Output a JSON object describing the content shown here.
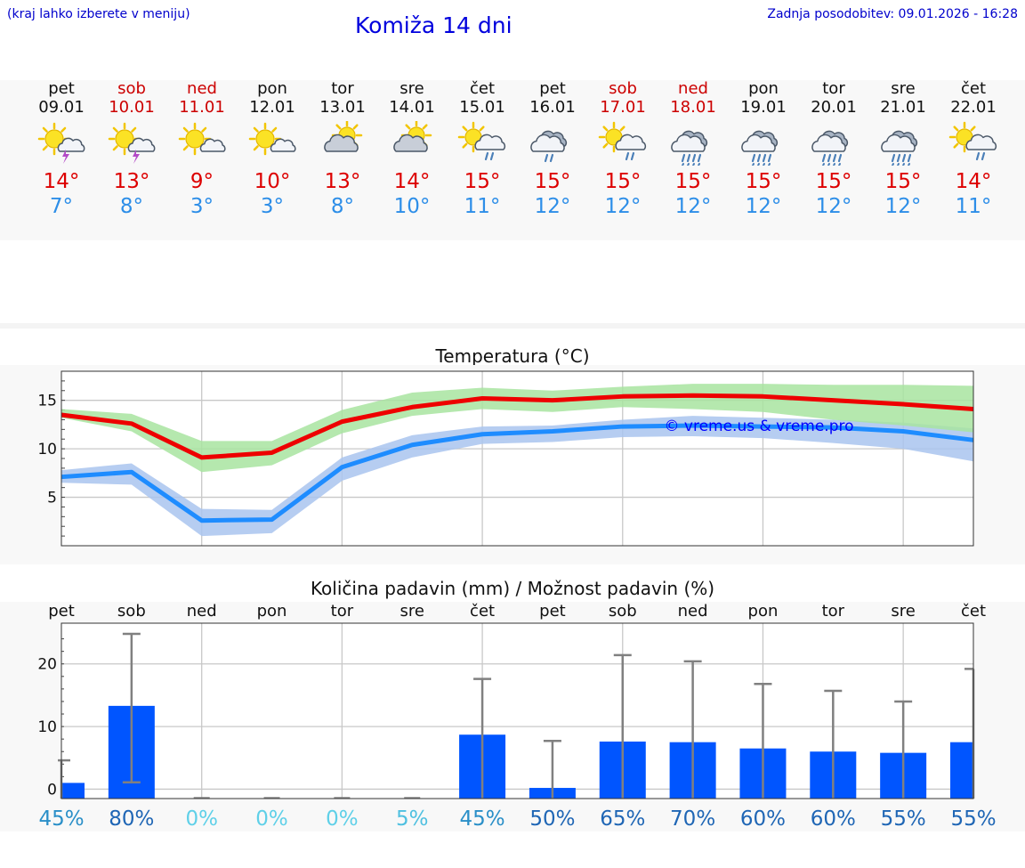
{
  "header": {
    "hint": "(kraj lahko izberete v meniju)",
    "title": "Komiža 14 dni",
    "updated": "Zadnja posodobitev: 09.01.2026 - 16:28"
  },
  "days": [
    {
      "name": "pet",
      "date": "09.01",
      "weekend": false,
      "icon": "sun-cloud-thunder-icon",
      "tmax": "14°",
      "tmin": "7°"
    },
    {
      "name": "sob",
      "date": "10.01",
      "weekend": true,
      "icon": "sun-cloud-thunder-icon",
      "tmax": "13°",
      "tmin": "8°"
    },
    {
      "name": "ned",
      "date": "11.01",
      "weekend": true,
      "icon": "sun-small-cloud-icon",
      "tmax": "9°",
      "tmin": "3°"
    },
    {
      "name": "pon",
      "date": "12.01",
      "weekend": false,
      "icon": "sun-small-cloud-icon",
      "tmax": "10°",
      "tmin": "3°"
    },
    {
      "name": "tor",
      "date": "13.01",
      "weekend": false,
      "icon": "cloud-sun-icon",
      "tmax": "13°",
      "tmin": "8°"
    },
    {
      "name": "sre",
      "date": "14.01",
      "weekend": false,
      "icon": "cloud-sun-icon",
      "tmax": "14°",
      "tmin": "10°"
    },
    {
      "name": "čet",
      "date": "15.01",
      "weekend": false,
      "icon": "sun-cloud-rain-icon",
      "tmax": "15°",
      "tmin": "11°"
    },
    {
      "name": "pet",
      "date": "16.01",
      "weekend": false,
      "icon": "cloud-rain-icon",
      "tmax": "15°",
      "tmin": "12°"
    },
    {
      "name": "sob",
      "date": "17.01",
      "weekend": true,
      "icon": "sun-cloud-rain-icon",
      "tmax": "15°",
      "tmin": "12°"
    },
    {
      "name": "ned",
      "date": "18.01",
      "weekend": true,
      "icon": "cloud-heavy-rain-icon",
      "tmax": "15°",
      "tmin": "12°"
    },
    {
      "name": "pon",
      "date": "19.01",
      "weekend": false,
      "icon": "cloud-heavy-rain-icon",
      "tmax": "15°",
      "tmin": "12°"
    },
    {
      "name": "tor",
      "date": "20.01",
      "weekend": false,
      "icon": "cloud-heavy-rain-icon",
      "tmax": "15°",
      "tmin": "12°"
    },
    {
      "name": "sre",
      "date": "21.01",
      "weekend": false,
      "icon": "cloud-heavy-rain-icon",
      "tmax": "15°",
      "tmin": "12°"
    },
    {
      "name": "čet",
      "date": "22.01",
      "weekend": false,
      "icon": "sun-cloud-rain-icon",
      "tmax": "14°",
      "tmin": "11°"
    }
  ],
  "chart_data": [
    {
      "type": "line",
      "title": "Temperatura (°C)",
      "watermark": "© vreme.us & vreme.pro",
      "ylim": [
        0,
        18
      ],
      "yticks": [
        5,
        10,
        15
      ],
      "x": [
        0,
        1,
        2,
        3,
        4,
        5,
        6,
        7,
        8,
        9,
        10,
        11,
        12,
        13
      ],
      "grid": true,
      "colors": {
        "max": "#ee0000",
        "min": "#1e8cff",
        "max_band": "#a8e4a0",
        "min_band": "#a9c4ee"
      },
      "series": [
        {
          "name": "max",
          "values": [
            13.5,
            12.6,
            9.1,
            9.6,
            12.8,
            14.3,
            15.2,
            15.0,
            15.4,
            15.5,
            15.4,
            15.0,
            14.6,
            14.1
          ],
          "band_upper": [
            14.1,
            13.6,
            10.8,
            10.8,
            14.0,
            15.8,
            16.3,
            16.0,
            16.4,
            16.7,
            16.7,
            16.6,
            16.6,
            16.5
          ],
          "band_lower": [
            13.2,
            11.8,
            7.6,
            8.3,
            11.6,
            13.4,
            14.1,
            13.8,
            14.3,
            14.1,
            13.8,
            13.0,
            12.4,
            11.7
          ]
        },
        {
          "name": "min",
          "values": [
            7.1,
            7.6,
            2.6,
            2.7,
            8.1,
            10.4,
            11.5,
            11.8,
            12.3,
            12.4,
            12.3,
            12.2,
            11.8,
            10.9
          ],
          "band_upper": [
            7.8,
            8.5,
            3.8,
            3.7,
            9.1,
            11.4,
            12.3,
            12.4,
            13.0,
            13.4,
            13.2,
            13.0,
            12.7,
            12.1
          ],
          "band_lower": [
            6.5,
            6.3,
            1.0,
            1.3,
            6.7,
            9.1,
            10.5,
            10.7,
            11.2,
            11.3,
            11.1,
            10.6,
            10.0,
            8.7
          ]
        }
      ]
    },
    {
      "type": "bar",
      "title": "Količina padavin (mm) / Možnost padavin (%)",
      "categories": [
        "pet",
        "sob",
        "ned",
        "pon",
        "tor",
        "sre",
        "čet",
        "pet",
        "sob",
        "ned",
        "pon",
        "tor",
        "sre",
        "čet"
      ],
      "ylim": [
        -1.5,
        26.5
      ],
      "yticks": [
        0,
        10,
        20
      ],
      "grid": true,
      "bar_color": "#0055ff",
      "error_color": "#808080",
      "values": [
        1.0,
        13.3,
        0,
        0,
        0,
        0,
        8.7,
        0.2,
        7.6,
        7.5,
        6.5,
        6.0,
        5.8,
        7.5
      ],
      "error_low": [
        0,
        1.1,
        0,
        0,
        0,
        0,
        0,
        0,
        0,
        0,
        0,
        0,
        0,
        0
      ],
      "error_high": [
        4.6,
        24.8,
        0,
        0,
        0,
        0,
        17.6,
        7.7,
        21.4,
        20.4,
        16.8,
        15.7,
        14.0,
        19.2
      ],
      "probabilities": [
        "45%",
        "80%",
        "0%",
        "0%",
        "0%",
        "5%",
        "45%",
        "50%",
        "65%",
        "70%",
        "60%",
        "60%",
        "55%",
        "55%"
      ],
      "probability_colors": [
        "#2a8fc8",
        "#1f66b5",
        "#5fd0e8",
        "#5fd0e8",
        "#5fd0e8",
        "#4fc0e0",
        "#2a8fc8",
        "#1f66b5",
        "#1f66b5",
        "#1f66b5",
        "#1f66b5",
        "#1f66b5",
        "#1f66b5",
        "#1f66b5"
      ]
    }
  ]
}
